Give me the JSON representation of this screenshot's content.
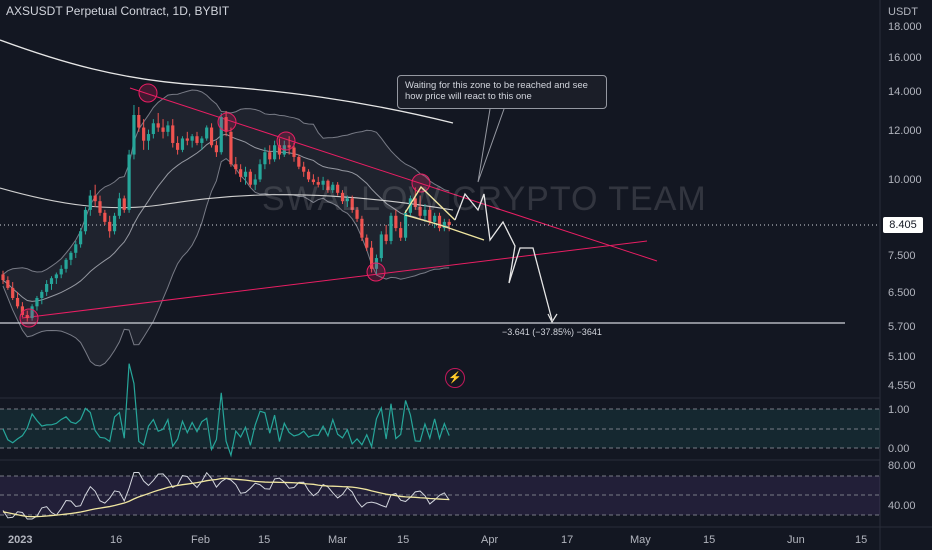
{
  "header": {
    "title": "AXSUSDT Perpetual Contract, 1D, BYBIT",
    "currency": "USDT"
  },
  "watermark": "SWALLOW CRYPTO TEAM",
  "current_price": "8.405",
  "callout": "Waiting for this zone to be reached and see how price will react to this one",
  "measure_label": "−3.641 (−37.85%) −3641",
  "chart_data": {
    "type": "candlestick",
    "price_axis": {
      "scale": "log",
      "ticks": [
        "18.000",
        "16.000",
        "14.000",
        "12.000",
        "10.000",
        "8.405",
        "7.500",
        "6.500",
        "5.700",
        "5.100",
        "4.550"
      ],
      "range": [
        4.45,
        18.4
      ]
    },
    "time_axis": {
      "ticks": [
        "2023",
        "16",
        "Feb",
        "15",
        "Mar",
        "15",
        "Apr",
        "17",
        "May",
        "15",
        "Jun",
        "15"
      ]
    },
    "candles": [
      [
        6.95,
        7.05,
        6.7,
        6.8
      ],
      [
        6.8,
        6.9,
        6.55,
        6.6
      ],
      [
        6.6,
        6.75,
        6.3,
        6.35
      ],
      [
        6.35,
        6.5,
        6.1,
        6.15
      ],
      [
        6.15,
        6.25,
        5.9,
        5.95
      ],
      [
        5.95,
        6.05,
        5.8,
        5.88
      ],
      [
        5.88,
        6.2,
        5.82,
        6.15
      ],
      [
        6.15,
        6.4,
        6.05,
        6.35
      ],
      [
        6.35,
        6.55,
        6.2,
        6.5
      ],
      [
        6.5,
        6.8,
        6.4,
        6.7
      ],
      [
        6.7,
        6.9,
        6.55,
        6.85
      ],
      [
        6.85,
        7.0,
        6.7,
        6.95
      ],
      [
        6.95,
        7.2,
        6.85,
        7.1
      ],
      [
        7.1,
        7.4,
        7.0,
        7.35
      ],
      [
        7.35,
        7.6,
        7.2,
        7.55
      ],
      [
        7.55,
        7.9,
        7.4,
        7.8
      ],
      [
        7.8,
        8.3,
        7.7,
        8.2
      ],
      [
        8.2,
        9.0,
        8.1,
        8.9
      ],
      [
        8.9,
        9.6,
        8.7,
        9.4
      ],
      [
        9.4,
        9.8,
        9.0,
        9.2
      ],
      [
        9.2,
        9.4,
        8.7,
        8.8
      ],
      [
        8.8,
        8.9,
        8.4,
        8.5
      ],
      [
        8.5,
        8.7,
        8.0,
        8.2
      ],
      [
        8.2,
        8.8,
        8.1,
        8.7
      ],
      [
        8.7,
        9.5,
        8.6,
        9.3
      ],
      [
        9.3,
        9.4,
        8.8,
        8.9
      ],
      [
        8.9,
        11.2,
        8.8,
        11.0
      ],
      [
        11.0,
        13.3,
        10.8,
        12.8
      ],
      [
        12.8,
        13.2,
        12.0,
        12.2
      ],
      [
        12.2,
        12.6,
        11.2,
        11.6
      ],
      [
        11.6,
        12.1,
        11.2,
        11.9
      ],
      [
        11.9,
        12.6,
        11.7,
        12.4
      ],
      [
        12.4,
        12.9,
        12.0,
        12.2
      ],
      [
        12.2,
        12.6,
        11.7,
        12.0
      ],
      [
        12.0,
        12.5,
        11.8,
        12.3
      ],
      [
        12.3,
        12.6,
        11.3,
        11.5
      ],
      [
        11.5,
        11.8,
        11.0,
        11.2
      ],
      [
        11.2,
        11.8,
        11.1,
        11.7
      ],
      [
        11.7,
        12.0,
        11.4,
        11.6
      ],
      [
        11.6,
        11.9,
        11.3,
        11.8
      ],
      [
        11.8,
        12.0,
        11.4,
        11.5
      ],
      [
        11.5,
        11.8,
        11.2,
        11.7
      ],
      [
        11.7,
        12.3,
        11.6,
        12.2
      ],
      [
        12.2,
        12.4,
        11.3,
        11.4
      ],
      [
        11.4,
        11.6,
        10.9,
        11.1
      ],
      [
        11.1,
        12.9,
        11.0,
        12.7
      ],
      [
        12.7,
        13.0,
        11.8,
        12.0
      ],
      [
        12.0,
        12.2,
        10.5,
        10.6
      ],
      [
        10.6,
        10.9,
        10.2,
        10.4
      ],
      [
        10.4,
        10.6,
        9.9,
        10.1
      ],
      [
        10.1,
        10.5,
        9.8,
        10.3
      ],
      [
        10.3,
        10.4,
        9.7,
        9.8
      ],
      [
        9.8,
        10.2,
        9.6,
        10.0
      ],
      [
        10.0,
        10.8,
        9.9,
        10.6
      ],
      [
        10.6,
        11.3,
        10.4,
        11.1
      ],
      [
        11.1,
        11.4,
        10.6,
        10.8
      ],
      [
        10.8,
        11.6,
        10.7,
        11.4
      ],
      [
        11.4,
        11.7,
        10.8,
        11.0
      ],
      [
        11.0,
        11.6,
        10.9,
        11.4
      ],
      [
        11.4,
        11.8,
        11.0,
        11.3
      ],
      [
        11.3,
        11.5,
        10.7,
        10.9
      ],
      [
        10.9,
        11.0,
        10.4,
        10.5
      ],
      [
        10.5,
        10.7,
        10.1,
        10.3
      ],
      [
        10.3,
        10.4,
        9.9,
        10.0
      ],
      [
        10.0,
        10.2,
        9.8,
        9.9
      ],
      [
        9.9,
        10.1,
        9.7,
        9.8
      ],
      [
        9.8,
        10.1,
        9.6,
        9.95
      ],
      [
        9.95,
        10.0,
        9.5,
        9.6
      ],
      [
        9.6,
        9.9,
        9.5,
        9.8
      ],
      [
        9.8,
        9.9,
        9.4,
        9.5
      ],
      [
        9.5,
        9.6,
        9.1,
        9.2
      ],
      [
        9.2,
        9.4,
        9.0,
        9.3
      ],
      [
        9.3,
        9.4,
        8.8,
        8.9
      ],
      [
        8.9,
        9.0,
        8.5,
        8.6
      ],
      [
        8.6,
        8.7,
        7.9,
        8.0
      ],
      [
        8.0,
        8.1,
        7.6,
        7.7
      ],
      [
        7.7,
        7.9,
        7.0,
        7.1
      ],
      [
        7.1,
        7.5,
        6.95,
        7.4
      ],
      [
        7.4,
        8.2,
        7.3,
        8.1
      ],
      [
        8.1,
        8.4,
        7.8,
        7.9
      ],
      [
        7.9,
        8.8,
        7.8,
        8.7
      ],
      [
        8.7,
        8.9,
        8.2,
        8.3
      ],
      [
        8.3,
        8.5,
        7.9,
        8.0
      ],
      [
        8.0,
        8.9,
        7.9,
        8.8
      ],
      [
        8.8,
        9.4,
        8.7,
        9.3
      ],
      [
        9.3,
        9.7,
        8.9,
        9.0
      ],
      [
        9.0,
        9.4,
        8.6,
        8.7
      ],
      [
        8.7,
        9.1,
        8.5,
        8.9
      ],
      [
        8.9,
        9.0,
        8.4,
        8.5
      ],
      [
        8.5,
        8.8,
        8.3,
        8.7
      ],
      [
        8.7,
        8.8,
        8.2,
        8.3
      ],
      [
        8.3,
        8.6,
        8.2,
        8.5
      ],
      [
        8.5,
        8.6,
        8.2,
        8.4
      ]
    ],
    "indicator_1": {
      "ticks": [
        "1.00",
        "0.00"
      ]
    },
    "indicator_2": {
      "ticks": [
        "80.00",
        "40.00"
      ]
    }
  }
}
